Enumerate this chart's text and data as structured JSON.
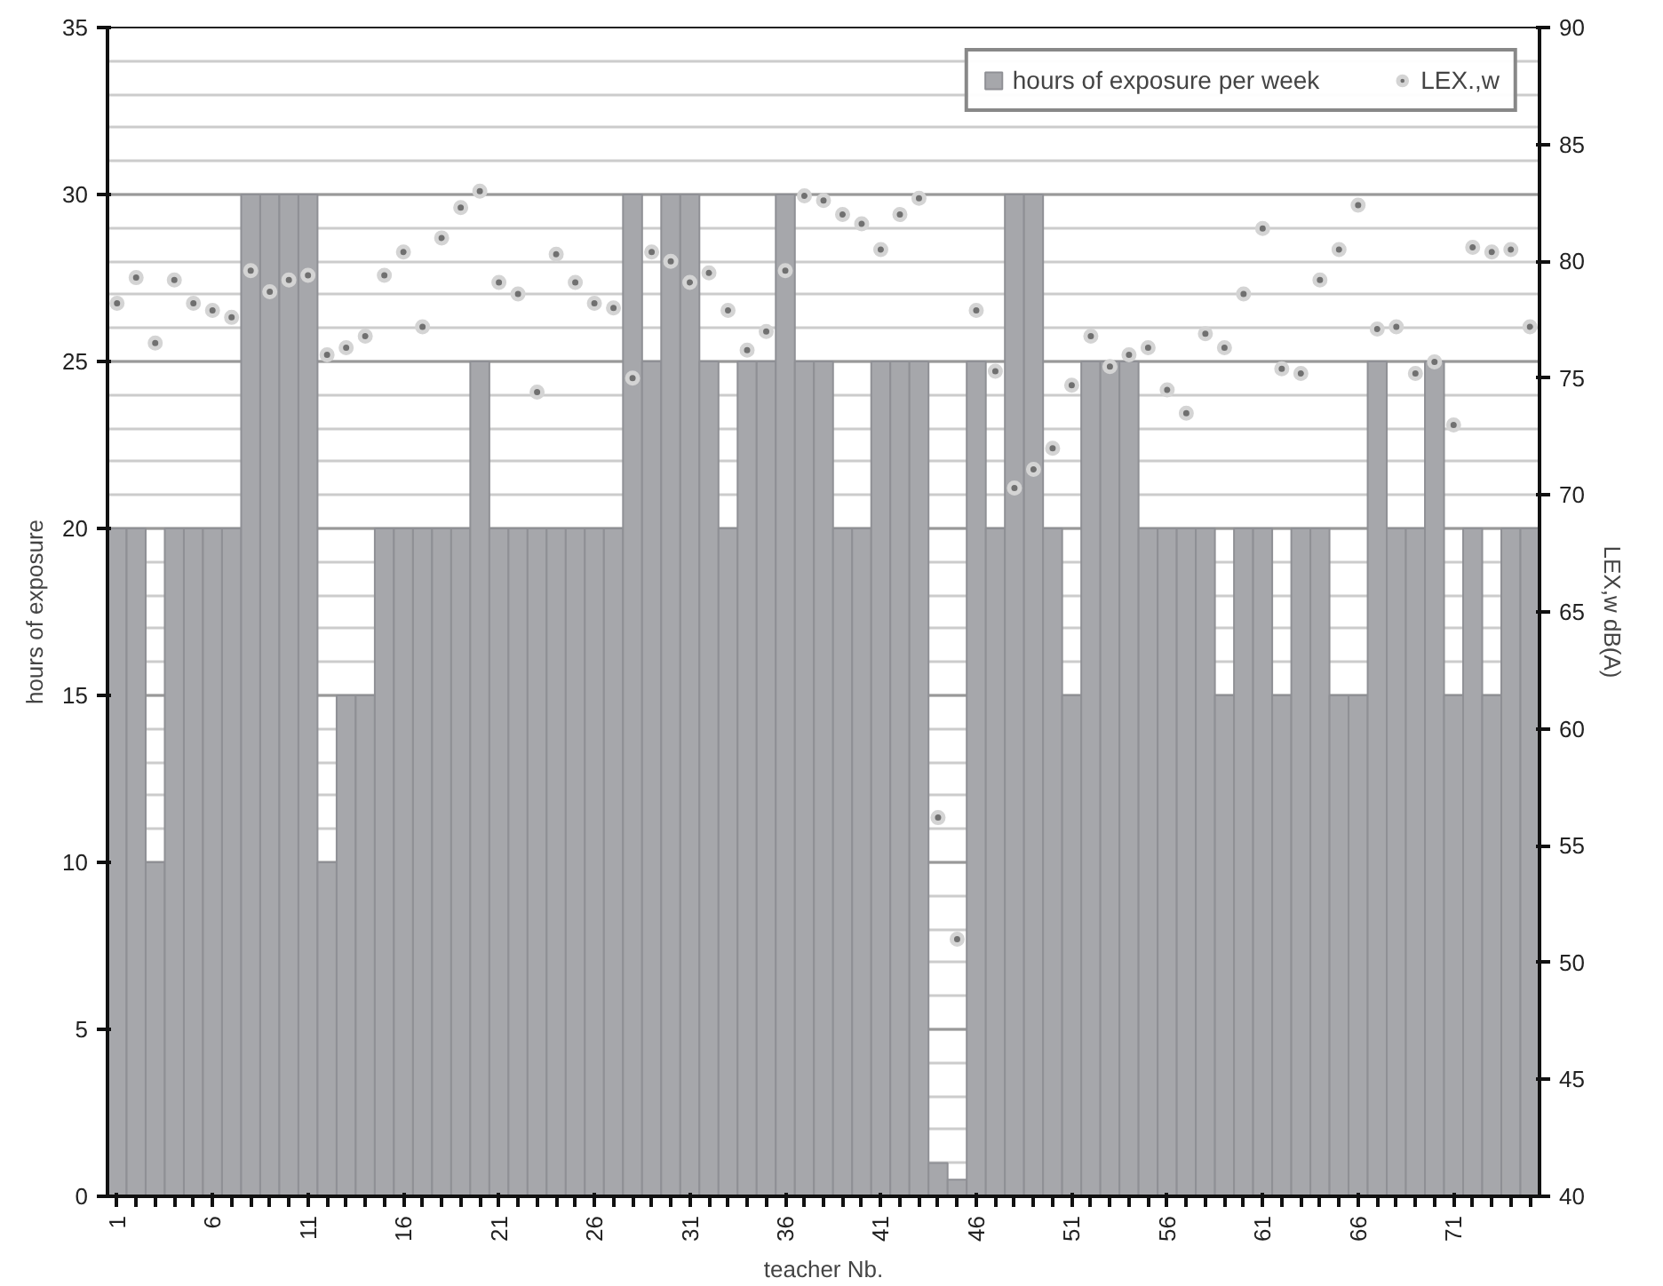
{
  "chart_data": {
    "type": "bar",
    "xlabel": "teacher Nb.",
    "ylabel": "hours of exposure",
    "y2label": "LEX,w dB(A)",
    "x": [
      1,
      2,
      3,
      4,
      5,
      6,
      7,
      8,
      9,
      10,
      11,
      12,
      13,
      14,
      15,
      16,
      17,
      18,
      19,
      20,
      21,
      22,
      23,
      24,
      25,
      26,
      27,
      28,
      29,
      30,
      31,
      32,
      33,
      34,
      35,
      36,
      37,
      38,
      39,
      40,
      41,
      42,
      43,
      44,
      45,
      46,
      47,
      48,
      49,
      50,
      51,
      52,
      53,
      54,
      55,
      56,
      57,
      58,
      59,
      60,
      61,
      62,
      63,
      64,
      65,
      66,
      67,
      68,
      69,
      70,
      71,
      72,
      73,
      74,
      75
    ],
    "xlim": [
      0.5,
      75.5
    ],
    "xticks": [
      1,
      6,
      11,
      16,
      21,
      26,
      31,
      36,
      41,
      46,
      51,
      56,
      61,
      66,
      71
    ],
    "ylim": [
      0,
      35
    ],
    "yticks": [
      0,
      5,
      10,
      15,
      20,
      25,
      30,
      35
    ],
    "y2lim": [
      40,
      90
    ],
    "y2ticks": [
      40,
      45,
      50,
      55,
      60,
      65,
      70,
      75,
      80,
      85,
      90
    ],
    "grid": "y",
    "legend": "top right",
    "series": [
      {
        "name": "hours of exposure per week",
        "color": "#a6a7ab",
        "values": [
          20,
          20,
          10,
          20,
          20,
          20,
          20,
          30,
          30,
          30,
          30,
          10,
          15,
          15,
          20,
          20,
          20,
          20,
          20,
          25,
          20,
          20,
          20,
          20,
          20,
          20,
          20,
          30,
          25,
          30,
          30,
          25,
          20,
          25,
          25,
          30,
          25,
          25,
          20,
          20,
          25,
          25,
          25,
          1,
          0.5,
          25,
          20,
          30,
          30,
          20,
          15,
          25,
          25,
          25,
          20,
          20,
          20,
          20,
          15,
          20,
          20,
          15,
          20,
          20,
          15,
          15,
          25,
          20,
          20,
          25,
          15,
          20,
          15,
          20,
          20
        ]
      },
      {
        "name": "LEX.,w",
        "type": "scatter",
        "axis": "y2",
        "marker": "circle",
        "color": "#707070",
        "values": [
          78.2,
          79.3,
          76.5,
          79.2,
          78.2,
          77.9,
          77.6,
          79.6,
          78.7,
          79.2,
          79.4,
          76.0,
          76.3,
          76.8,
          79.4,
          80.4,
          77.2,
          81.0,
          82.3,
          83.0,
          79.1,
          78.6,
          74.4,
          80.3,
          79.1,
          78.2,
          78.0,
          75.0,
          80.4,
          80.0,
          79.1,
          79.5,
          77.9,
          76.2,
          77.0,
          79.6,
          82.8,
          82.6,
          82.0,
          81.6,
          80.5,
          82.0,
          82.7,
          56.2,
          51.0,
          77.9,
          75.3,
          70.3,
          71.1,
          72.0,
          74.7,
          76.8,
          75.5,
          76.0,
          76.3,
          74.5,
          73.5,
          76.9,
          76.3,
          78.6,
          81.4,
          75.4,
          75.2,
          79.2,
          80.5,
          82.4,
          77.1,
          77.2,
          75.2,
          75.7,
          73.0,
          80.6,
          80.4,
          80.5,
          77.2
        ]
      }
    ]
  }
}
